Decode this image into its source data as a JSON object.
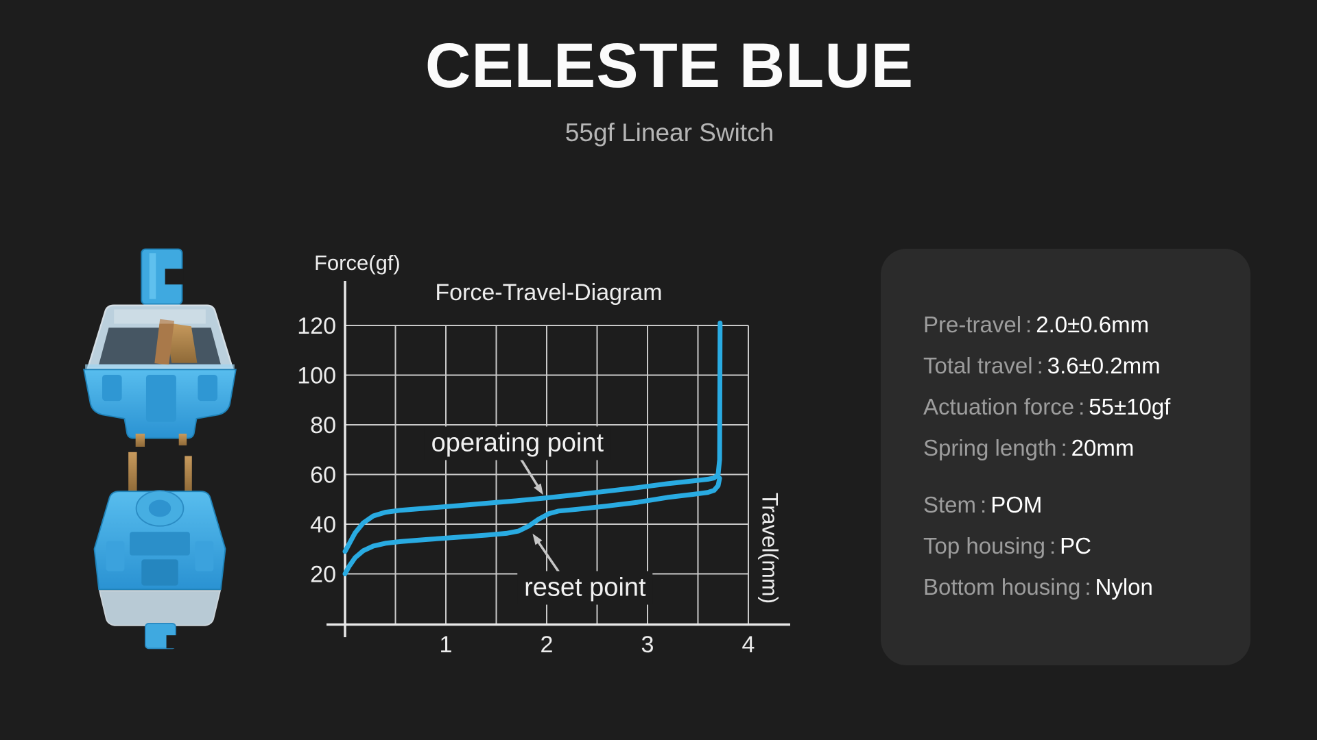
{
  "page": {
    "background": "#1d1d1d",
    "panel_background": "#2b2b2b"
  },
  "header": {
    "title": "CELESTE BLUE",
    "subtitle": "55gf Linear Switch"
  },
  "chart_data": {
    "type": "line",
    "title": "Force-Travel-Diagram",
    "xlabel": "Travel(mm)",
    "ylabel": "Force(gf)",
    "xlim": [
      0,
      4.4
    ],
    "ylim": [
      0,
      130
    ],
    "x_ticks": [
      1,
      2,
      3,
      4
    ],
    "y_ticks": [
      20,
      40,
      60,
      80,
      100,
      120
    ],
    "grid": {
      "on": true,
      "x_step": 0.5,
      "y_step": 20,
      "color": "#c9c9c9"
    },
    "line_color": "#29abe2",
    "axis_color": "#e8e8e8",
    "arrow_color": "#c6c6c6",
    "series": [
      {
        "name": "press",
        "points": [
          [
            0,
            29
          ],
          [
            0.04,
            32
          ],
          [
            0.1,
            36.5
          ],
          [
            0.18,
            40.5
          ],
          [
            0.28,
            43.3
          ],
          [
            0.4,
            44.8
          ],
          [
            0.55,
            45.6
          ],
          [
            0.8,
            46.4
          ],
          [
            1.1,
            47.4
          ],
          [
            1.4,
            48.4
          ],
          [
            1.7,
            49.4
          ],
          [
            2.0,
            50.6
          ],
          [
            2.3,
            51.9
          ],
          [
            2.6,
            53.3
          ],
          [
            2.9,
            54.7
          ],
          [
            3.2,
            56.3
          ],
          [
            3.45,
            57.4
          ],
          [
            3.6,
            58.1
          ],
          [
            3.66,
            58.6
          ],
          [
            3.7,
            60
          ],
          [
            3.715,
            66
          ],
          [
            3.72,
            121
          ]
        ]
      },
      {
        "name": "release",
        "points": [
          [
            0,
            20
          ],
          [
            0.04,
            23
          ],
          [
            0.1,
            26.5
          ],
          [
            0.18,
            29.3
          ],
          [
            0.28,
            31.2
          ],
          [
            0.4,
            32.3
          ],
          [
            0.55,
            33
          ],
          [
            0.8,
            33.8
          ],
          [
            1.1,
            34.7
          ],
          [
            1.4,
            35.6
          ],
          [
            1.6,
            36.3
          ],
          [
            1.72,
            37.2
          ],
          [
            1.82,
            39.2
          ],
          [
            1.92,
            42
          ],
          [
            2.02,
            44.2
          ],
          [
            2.12,
            45.3
          ],
          [
            2.3,
            46
          ],
          [
            2.6,
            47.3
          ],
          [
            2.9,
            48.8
          ],
          [
            3.2,
            50.8
          ],
          [
            3.45,
            52
          ],
          [
            3.6,
            52.8
          ],
          [
            3.66,
            53.6
          ],
          [
            3.7,
            55.5
          ],
          [
            3.715,
            58.5
          ]
        ]
      }
    ],
    "annotations": [
      {
        "label": "operating point",
        "text_at": [
          1.71,
          72.6
        ],
        "arrow": {
          "from": [
            1.74,
            66.5
          ],
          "to": [
            1.965,
            51.8
          ]
        }
      },
      {
        "label": "reset point",
        "text_at": [
          2.38,
          14.4
        ],
        "arrow": {
          "from": [
            2.14,
            19.6
          ],
          "to": [
            1.86,
            36.2
          ]
        }
      }
    ],
    "legend": null
  },
  "specs": {
    "separator": ":",
    "groups": [
      {
        "rows": [
          {
            "label": "Pre-travel",
            "value": "2.0±0.6mm"
          },
          {
            "label": "Total travel",
            "value": "3.6±0.2mm"
          },
          {
            "label": "Actuation force",
            "value": "55±10gf"
          },
          {
            "label": "Spring length",
            "value": "20mm"
          }
        ]
      },
      {
        "rows": [
          {
            "label": "Stem",
            "value": "POM"
          },
          {
            "label": "Top housing",
            "value": "PC"
          },
          {
            "label": "Bottom housing",
            "value": "Nylon"
          }
        ]
      }
    ]
  },
  "images": {
    "switch_top": "blue linear switch, upright front view",
    "switch_bottom": "blue linear switch, upside-down view",
    "switch_blue": "#3fa9e0",
    "pin_gold": "#b8874f"
  }
}
